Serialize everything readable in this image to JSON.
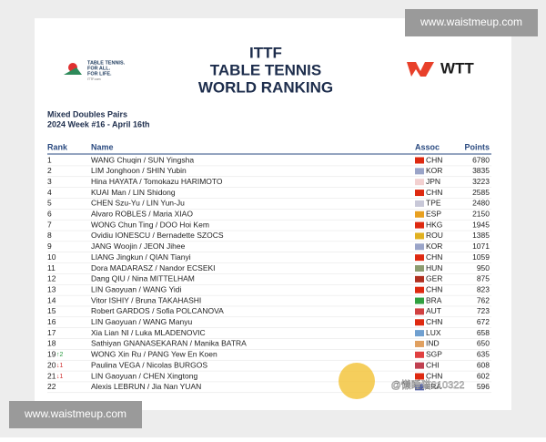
{
  "watermark_top": "www.waistmeup.com",
  "watermark_bottom": "www.waistmeup.com",
  "ittf_logo": {
    "line1": "TABLE TENNIS.",
    "line2": "FOR ALL.",
    "line3": "FOR LIFE.",
    "site": "ITTF.com"
  },
  "header": {
    "title1": "ITTF",
    "title2": "TABLE TENNIS",
    "title3": "WORLD RANKING",
    "wtt": "WTT"
  },
  "subtitle": {
    "event": "Mixed Doubles Pairs",
    "week": "2024 Week #16 - April 16th"
  },
  "table": {
    "columns": [
      "Rank",
      "Name",
      "Assoc",
      "Points"
    ],
    "rows": [
      {
        "rank": "1",
        "move": null,
        "name": "WANG Chuqin / SUN Yingsha",
        "assoc": "CHN",
        "points": "6780",
        "flag": "#de2910"
      },
      {
        "rank": "2",
        "move": null,
        "name": "LIM Jonghoon / SHIN Yubin",
        "assoc": "KOR",
        "points": "3835",
        "flag": "#9aa4c8"
      },
      {
        "rank": "3",
        "move": null,
        "name": "Hina HAYATA / Tomokazu HARIMOTO",
        "assoc": "JPN",
        "points": "3223",
        "flag": "#f2d0d0"
      },
      {
        "rank": "4",
        "move": null,
        "name": "KUAI Man / LIN Shidong",
        "assoc": "CHN",
        "points": "2585",
        "flag": "#de2910"
      },
      {
        "rank": "5",
        "move": null,
        "name": "CHEN Szu-Yu / LIN Yun-Ju",
        "assoc": "TPE",
        "points": "2480",
        "flag": "#c8c8d8"
      },
      {
        "rank": "6",
        "move": null,
        "name": "Alvaro ROBLES / Maria XIAO",
        "assoc": "ESP",
        "points": "2150",
        "flag": "#e8a020"
      },
      {
        "rank": "7",
        "move": null,
        "name": "WONG Chun Ting / DOO Hoi Kem",
        "assoc": "HKG",
        "points": "1945",
        "flag": "#de2910"
      },
      {
        "rank": "8",
        "move": null,
        "name": "Ovidiu IONESCU / Bernadette SZOCS",
        "assoc": "ROU",
        "points": "1385",
        "flag": "#e0b020"
      },
      {
        "rank": "9",
        "move": null,
        "name": "JANG Woojin / JEON Jihee",
        "assoc": "KOR",
        "points": "1071",
        "flag": "#9aa4c8"
      },
      {
        "rank": "10",
        "move": null,
        "name": "LIANG Jingkun / QIAN Tianyi",
        "assoc": "CHN",
        "points": "1059",
        "flag": "#de2910"
      },
      {
        "rank": "11",
        "move": null,
        "name": "Dora MADARASZ / Nandor ECSEKI",
        "assoc": "HUN",
        "points": "950",
        "flag": "#8c9c70"
      },
      {
        "rank": "12",
        "move": null,
        "name": "Dang QIU / Nina MITTELHAM",
        "assoc": "GER",
        "points": "875",
        "flag": "#b03020"
      },
      {
        "rank": "13",
        "move": null,
        "name": "LIN Gaoyuan / WANG Yidi",
        "assoc": "CHN",
        "points": "823",
        "flag": "#de2910"
      },
      {
        "rank": "14",
        "move": null,
        "name": "Vitor ISHIY / Bruna TAKAHASHI",
        "assoc": "BRA",
        "points": "762",
        "flag": "#30a040"
      },
      {
        "rank": "15",
        "move": null,
        "name": "Robert GARDOS / Sofia POLCANOVA",
        "assoc": "AUT",
        "points": "723",
        "flag": "#d04040"
      },
      {
        "rank": "16",
        "move": null,
        "name": "LIN Gaoyuan / WANG Manyu",
        "assoc": "CHN",
        "points": "672",
        "flag": "#de2910"
      },
      {
        "rank": "17",
        "move": null,
        "name": "Xia Lian NI / Luka MLADENOVIC",
        "assoc": "LUX",
        "points": "658",
        "flag": "#70a0d0"
      },
      {
        "rank": "18",
        "move": null,
        "name": "Sathiyan GNANASEKARAN / Manika BATRA",
        "assoc": "IND",
        "points": "650",
        "flag": "#e0a060"
      },
      {
        "rank": "19",
        "move": "↑2",
        "name": "WONG Xin Ru / PANG Yew En Koen",
        "assoc": "SGP",
        "points": "635",
        "flag": "#e04040"
      },
      {
        "rank": "20",
        "move": "↓1",
        "name": "Paulina VEGA / Nicolas BURGOS",
        "assoc": "CHI",
        "points": "608",
        "flag": "#c04050"
      },
      {
        "rank": "21",
        "move": "↓1",
        "name": "LIN Gaoyuan / CHEN Xingtong",
        "assoc": "CHN",
        "points": "602",
        "flag": "#de2910"
      },
      {
        "rank": "22",
        "move": null,
        "name": "Alexis LEBRUN / Jia Nan YUAN",
        "assoc": "FRA",
        "points": "596",
        "flag": "#5060b0"
      }
    ]
  },
  "overlay_text": "@懒睡猫210322"
}
